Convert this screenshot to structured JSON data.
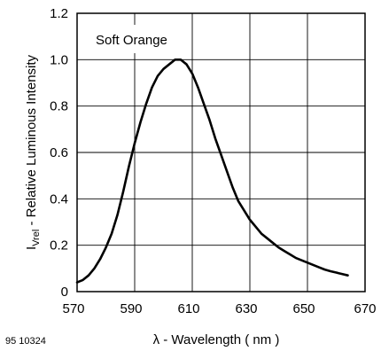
{
  "chart_data": {
    "type": "line",
    "annotation": "Soft Orange",
    "figure_id": "95 10324",
    "xlabel": "λ - Wavelength  ( nm )",
    "ylabel": {
      "prefix": "I",
      "subscript": "Vrel",
      "rest": " - Relative Luminous Intensity"
    },
    "xlim": [
      570,
      670
    ],
    "ylim": [
      0,
      1.2
    ],
    "xticks": [
      570,
      590,
      610,
      630,
      650,
      670
    ],
    "yticks": [
      0,
      0.2,
      0.4,
      0.6,
      0.8,
      1.0,
      1.2
    ],
    "ytick_labels": [
      "0",
      "0.2",
      "0.4",
      "0.6",
      "0.8",
      "1.0",
      "1.2"
    ],
    "grid": true,
    "series": [
      {
        "x": [
          570,
          572,
          574,
          576,
          578,
          580,
          582,
          584,
          586,
          588,
          590,
          592,
          594,
          596,
          598,
          600,
          602,
          604,
          606,
          608,
          610,
          612,
          614,
          616,
          618,
          620,
          622,
          624,
          626,
          628,
          630,
          632,
          634,
          636,
          638,
          640,
          642,
          644,
          646,
          648,
          650,
          652,
          654,
          656,
          658,
          660,
          662,
          664
        ],
        "y": [
          0.04,
          0.05,
          0.07,
          0.1,
          0.14,
          0.19,
          0.25,
          0.33,
          0.43,
          0.54,
          0.64,
          0.73,
          0.81,
          0.88,
          0.93,
          0.96,
          0.98,
          1.0,
          1.0,
          0.98,
          0.94,
          0.88,
          0.81,
          0.74,
          0.66,
          0.59,
          0.52,
          0.45,
          0.39,
          0.35,
          0.31,
          0.28,
          0.25,
          0.23,
          0.21,
          0.19,
          0.175,
          0.16,
          0.145,
          0.135,
          0.125,
          0.115,
          0.105,
          0.095,
          0.088,
          0.082,
          0.076,
          0.07
        ]
      }
    ]
  }
}
